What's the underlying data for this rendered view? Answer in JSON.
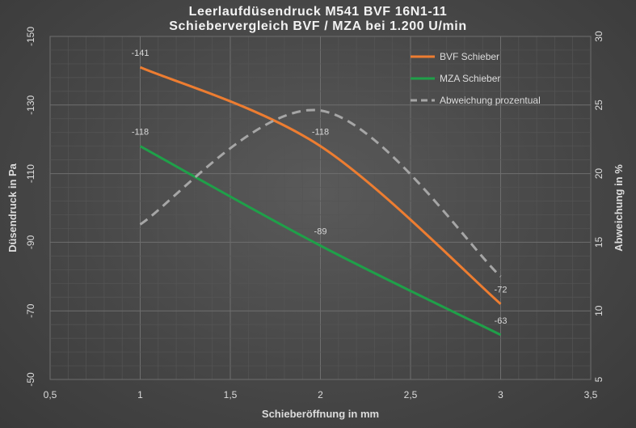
{
  "chart_data": {
    "type": "line",
    "title": "Leerlaufdüsendruck M541 BVF 16N1-11",
    "subtitle": "Schiebervergleich BVF / MZA bei 1.200 U/min",
    "xlabel": "Schieberöffnung in mm",
    "ylabel": "Düsendruck in Pa",
    "y2label": "Abweichung in %",
    "xlim": [
      0.5,
      3.5
    ],
    "ylim": [
      -150,
      -50
    ],
    "y2lim": [
      5,
      30
    ],
    "x_ticks": [
      "0,5",
      "1",
      "1,5",
      "2",
      "2,5",
      "3",
      "3,5"
    ],
    "y_ticks": [
      "-150",
      "-130",
      "-110",
      "-90",
      "-70",
      "-50"
    ],
    "y2_ticks": [
      "30",
      "25",
      "20",
      "15",
      "10",
      "5"
    ],
    "grid": true,
    "legend_position": "top-right",
    "x": [
      1,
      2,
      3
    ],
    "series": [
      {
        "name": "BVF Schieber",
        "axis": "left",
        "color": "#ed7d31",
        "values": [
          -141,
          -118,
          -72
        ],
        "labels": [
          "-141",
          "-118",
          "-72"
        ]
      },
      {
        "name": "MZA Schieber",
        "axis": "left",
        "color": "#1fa049",
        "values": [
          -118,
          -89,
          -63
        ],
        "labels": [
          "-118",
          "-89",
          "-63"
        ]
      },
      {
        "name": "Abweichung prozentual",
        "axis": "right",
        "color": "#a6a6a6",
        "dashed": true,
        "values": [
          16.3,
          24.6,
          12.5
        ]
      }
    ]
  }
}
